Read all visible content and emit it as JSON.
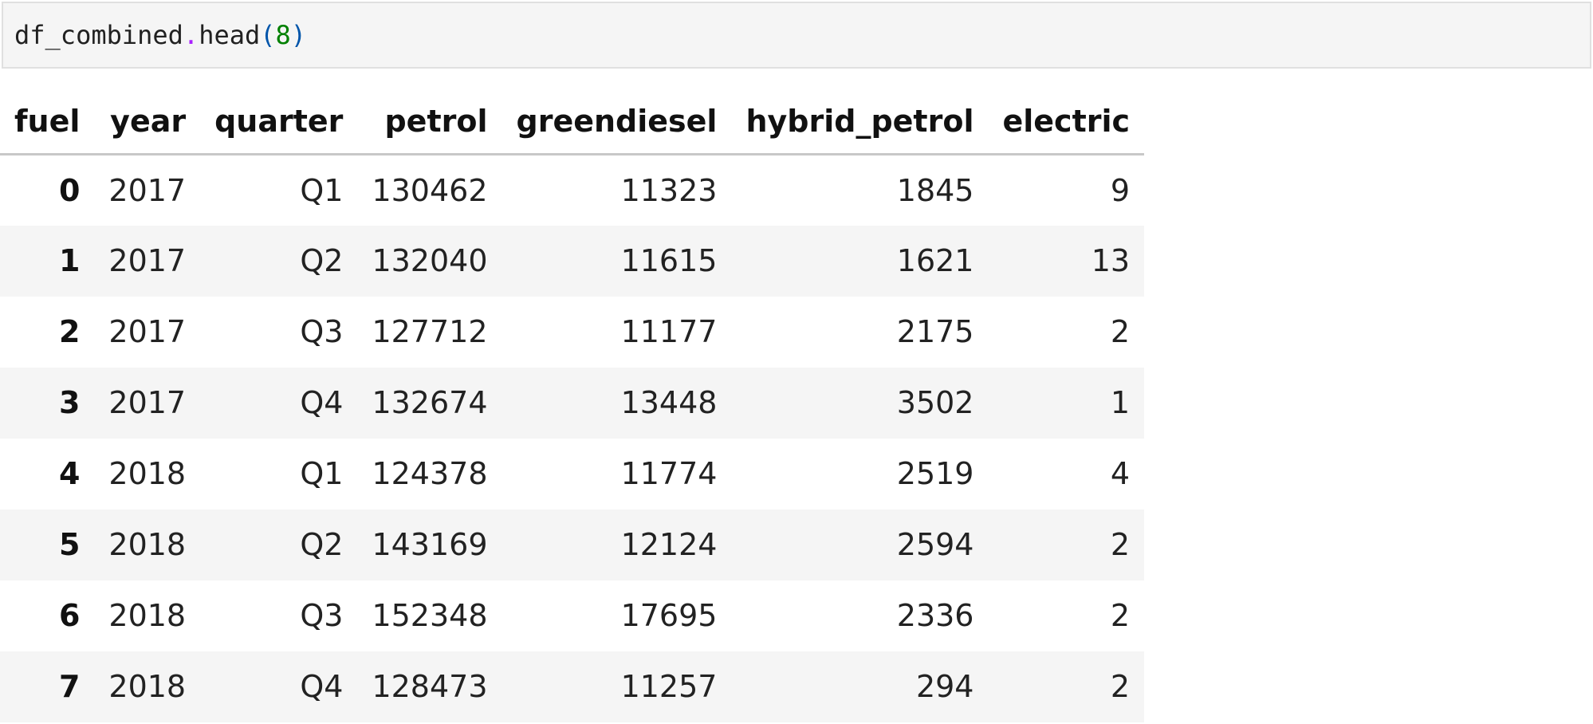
{
  "code_cell": {
    "var": "df_combined",
    "dot": ".",
    "method": "head",
    "open_paren": "(",
    "arg": "8",
    "close_paren": ")"
  },
  "table": {
    "columns": [
      "fuel",
      "year",
      "quarter",
      "petrol",
      "greendiesel",
      "hybrid_petrol",
      "electric"
    ],
    "rows": [
      {
        "index": "0",
        "year": "2017",
        "quarter": "Q1",
        "petrol": "130462",
        "greendiesel": "11323",
        "hybrid_petrol": "1845",
        "electric": "9"
      },
      {
        "index": "1",
        "year": "2017",
        "quarter": "Q2",
        "petrol": "132040",
        "greendiesel": "11615",
        "hybrid_petrol": "1621",
        "electric": "13"
      },
      {
        "index": "2",
        "year": "2017",
        "quarter": "Q3",
        "petrol": "127712",
        "greendiesel": "11177",
        "hybrid_petrol": "2175",
        "electric": "2"
      },
      {
        "index": "3",
        "year": "2017",
        "quarter": "Q4",
        "petrol": "132674",
        "greendiesel": "13448",
        "hybrid_petrol": "3502",
        "electric": "1"
      },
      {
        "index": "4",
        "year": "2018",
        "quarter": "Q1",
        "petrol": "124378",
        "greendiesel": "11774",
        "hybrid_petrol": "2519",
        "electric": "4"
      },
      {
        "index": "5",
        "year": "2018",
        "quarter": "Q2",
        "petrol": "143169",
        "greendiesel": "12124",
        "hybrid_petrol": "2594",
        "electric": "2"
      },
      {
        "index": "6",
        "year": "2018",
        "quarter": "Q3",
        "petrol": "152348",
        "greendiesel": "17695",
        "hybrid_petrol": "2336",
        "electric": "2"
      },
      {
        "index": "7",
        "year": "2018",
        "quarter": "Q4",
        "petrol": "128473",
        "greendiesel": "11257",
        "hybrid_petrol": "294",
        "electric": "2"
      }
    ]
  },
  "colors": {
    "code_background": "#f5f5f5",
    "code_border": "#e0e0e0",
    "dot_color": "#aa22ff",
    "paren_color": "#0055aa",
    "number_color": "#008000",
    "stripe_row": "#f5f5f5"
  }
}
